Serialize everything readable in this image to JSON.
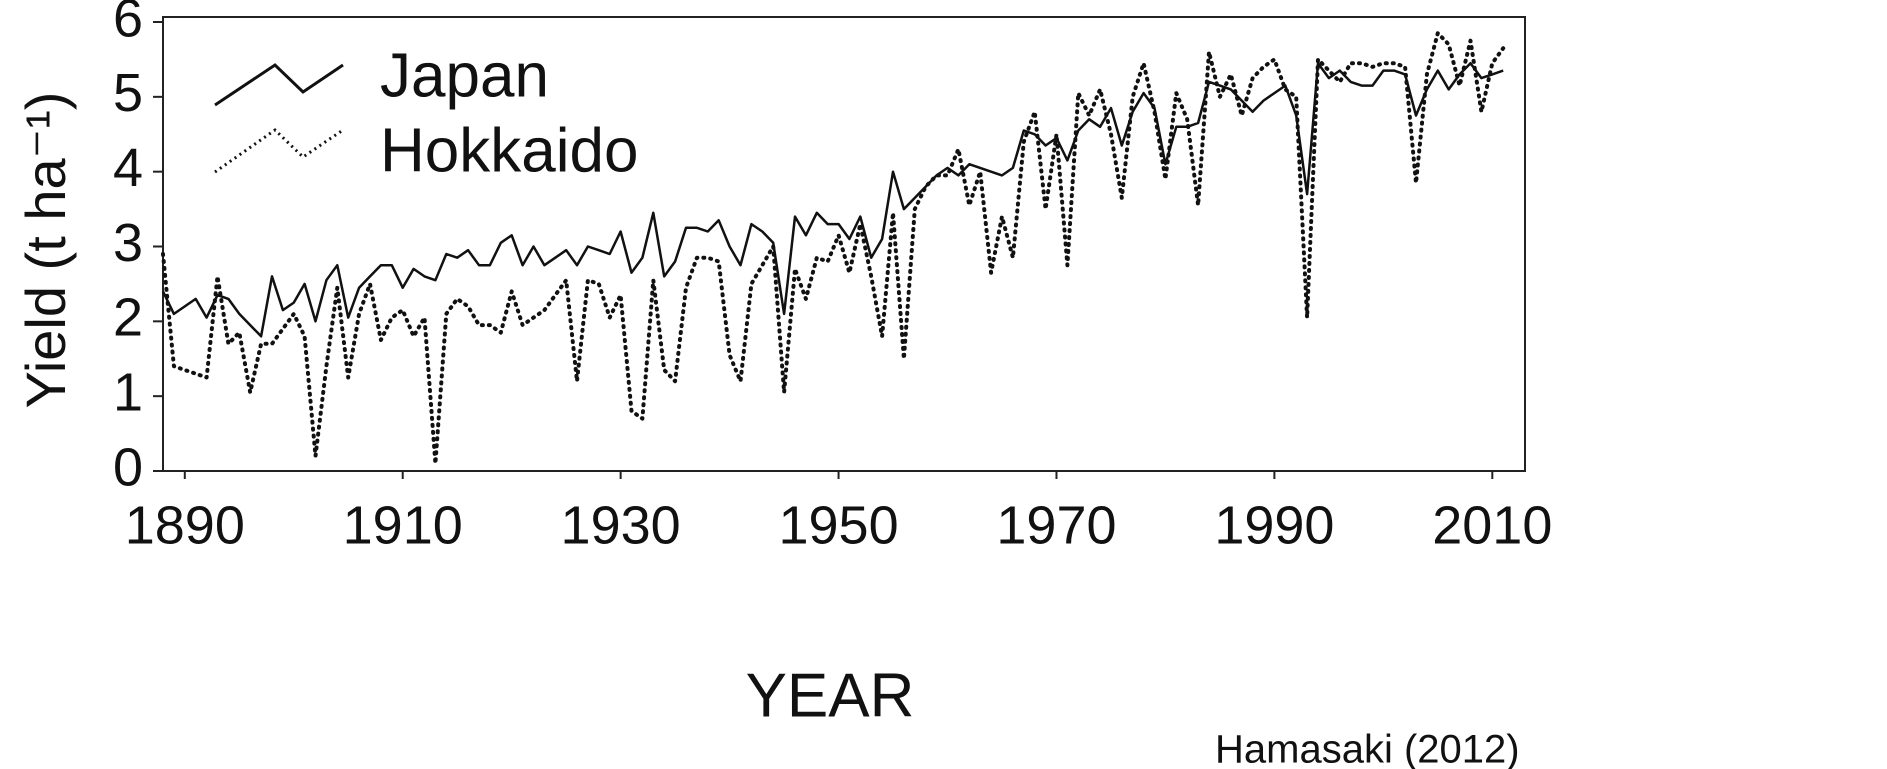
{
  "chart_data": {
    "type": "line",
    "xlabel": "YEAR",
    "ylabel": "Yield (t ha⁻¹)",
    "annotation": "Hamasaki (2012)",
    "legend": "upper left",
    "xlim": [
      1888,
      2013
    ],
    "ylim": [
      0,
      6
    ],
    "xticks": [
      1890,
      1910,
      1930,
      1950,
      1970,
      1990,
      2010
    ],
    "yticks": [
      0,
      1,
      2,
      3,
      4,
      5,
      6
    ],
    "x": [
      1888,
      1889,
      1890,
      1891,
      1892,
      1893,
      1894,
      1895,
      1896,
      1897,
      1898,
      1899,
      1900,
      1901,
      1902,
      1903,
      1904,
      1905,
      1906,
      1907,
      1908,
      1909,
      1910,
      1911,
      1912,
      1913,
      1914,
      1915,
      1916,
      1917,
      1918,
      1919,
      1920,
      1921,
      1922,
      1923,
      1924,
      1925,
      1926,
      1927,
      1928,
      1929,
      1930,
      1931,
      1932,
      1933,
      1934,
      1935,
      1936,
      1937,
      1938,
      1939,
      1940,
      1941,
      1942,
      1943,
      1944,
      1945,
      1946,
      1947,
      1948,
      1949,
      1950,
      1951,
      1952,
      1953,
      1954,
      1955,
      1956,
      1957,
      1958,
      1959,
      1960,
      1961,
      1962,
      1963,
      1964,
      1965,
      1966,
      1967,
      1968,
      1969,
      1970,
      1971,
      1972,
      1973,
      1974,
      1975,
      1976,
      1977,
      1978,
      1979,
      1980,
      1981,
      1982,
      1983,
      1984,
      1985,
      1986,
      1987,
      1988,
      1989,
      1990,
      1991,
      1992,
      1993,
      1994,
      1995,
      1996,
      1997,
      1998,
      1999,
      2000,
      2001,
      2002,
      2003,
      2004,
      2005,
      2006,
      2007,
      2008,
      2009,
      2010,
      2011
    ],
    "series": [
      {
        "name": "Japan",
        "color": "#111111",
        "dash": "solid",
        "values": [
          2.4,
          2.1,
          2.2,
          2.3,
          2.05,
          2.35,
          2.3,
          2.1,
          1.95,
          1.8,
          2.6,
          2.15,
          2.25,
          2.5,
          2.0,
          2.55,
          2.75,
          2.05,
          2.45,
          2.6,
          2.75,
          2.75,
          2.45,
          2.7,
          2.6,
          2.55,
          2.9,
          2.85,
          2.95,
          2.75,
          2.75,
          3.05,
          3.15,
          2.75,
          3.0,
          2.75,
          2.85,
          2.95,
          2.75,
          3.0,
          2.95,
          2.9,
          3.2,
          2.65,
          2.85,
          3.45,
          2.6,
          2.8,
          3.25,
          3.25,
          3.2,
          3.35,
          3.0,
          2.75,
          3.3,
          3.2,
          3.05,
          2.1,
          3.4,
          3.15,
          3.45,
          3.3,
          3.3,
          3.1,
          3.4,
          2.85,
          3.1,
          4.0,
          3.5,
          3.65,
          3.8,
          3.95,
          4.05,
          3.95,
          4.1,
          4.05,
          4.0,
          3.95,
          4.05,
          4.55,
          4.5,
          4.35,
          4.45,
          4.15,
          4.55,
          4.7,
          4.6,
          4.85,
          4.35,
          4.8,
          5.05,
          4.85,
          4.1,
          4.6,
          4.6,
          4.65,
          5.2,
          5.15,
          5.1,
          4.95,
          4.8,
          4.95,
          5.05,
          5.15,
          4.75,
          3.7,
          5.45,
          5.25,
          5.35,
          5.2,
          5.15,
          5.15,
          5.35,
          5.35,
          5.3,
          4.75,
          5.1,
          5.35,
          5.1,
          5.3,
          5.45,
          5.25,
          5.3,
          5.35
        ]
      },
      {
        "name": "Hokkaido",
        "color": "#111111",
        "dash": "dotted",
        "values": [
          2.9,
          1.4,
          1.35,
          1.3,
          1.25,
          2.6,
          1.7,
          1.85,
          1.05,
          1.7,
          1.7,
          1.9,
          2.1,
          1.8,
          0.2,
          1.4,
          2.45,
          1.25,
          2.1,
          2.5,
          1.75,
          2.05,
          2.15,
          1.8,
          2.05,
          0.1,
          2.1,
          2.3,
          2.2,
          1.95,
          1.95,
          1.85,
          2.4,
          1.95,
          2.05,
          2.15,
          2.35,
          2.55,
          1.2,
          2.55,
          2.5,
          2.05,
          2.35,
          0.8,
          0.7,
          2.55,
          1.35,
          1.2,
          2.45,
          2.85,
          2.85,
          2.8,
          1.55,
          1.2,
          2.5,
          2.75,
          3.0,
          1.05,
          2.7,
          2.3,
          2.85,
          2.8,
          3.15,
          2.65,
          3.3,
          2.6,
          1.8,
          3.45,
          1.5,
          3.5,
          3.8,
          3.95,
          3.95,
          4.3,
          3.55,
          4.0,
          2.65,
          3.4,
          2.85,
          4.4,
          4.8,
          3.5,
          4.5,
          2.75,
          5.05,
          4.75,
          5.1,
          4.5,
          3.65,
          5.0,
          5.45,
          4.8,
          3.9,
          5.05,
          4.7,
          3.55,
          5.6,
          5.0,
          5.3,
          4.75,
          5.25,
          5.4,
          5.5,
          5.1,
          5.0,
          2.05,
          5.5,
          5.35,
          5.2,
          5.45,
          5.45,
          5.4,
          5.45,
          5.45,
          5.4,
          3.85,
          5.3,
          5.85,
          5.7,
          5.15,
          5.75,
          4.8,
          5.45,
          5.65
        ]
      }
    ]
  }
}
